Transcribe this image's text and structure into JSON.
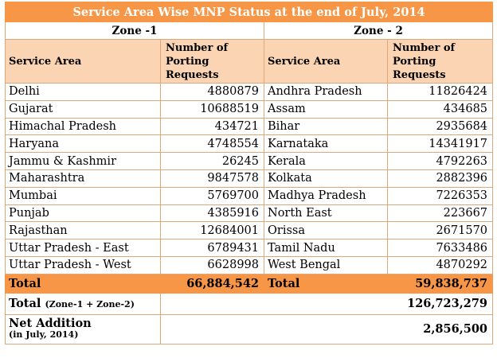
{
  "title": "Service Area Wise MNP Status at the end of July, 2014",
  "zones": [
    {
      "name": "Zone -1",
      "col_area": "Service Area",
      "col_requests": "Number of Porting Requests",
      "rows": [
        {
          "area": "Delhi",
          "requests": "4880879"
        },
        {
          "area": "Gujarat",
          "requests": "10688519"
        },
        {
          "area": "Himachal Pradesh",
          "requests": "434721"
        },
        {
          "area": "Haryana",
          "requests": "4748554"
        },
        {
          "area": "Jammu & Kashmir",
          "requests": "26245"
        },
        {
          "area": "Maharashtra",
          "requests": "9847578"
        },
        {
          "area": "Mumbai",
          "requests": "5769700"
        },
        {
          "area": "Punjab",
          "requests": "4385916"
        },
        {
          "area": "Rajasthan",
          "requests": "12684001"
        },
        {
          "area": "Uttar Pradesh - East",
          "requests": "6789431"
        },
        {
          "area": "Uttar Pradesh - West",
          "requests": "6628998"
        }
      ],
      "total_label": "Total",
      "total_value": "66,884,542"
    },
    {
      "name": "Zone - 2",
      "col_area": "Service Area",
      "col_requests": "Number of Porting Requests",
      "rows": [
        {
          "area": "Andhra Pradesh",
          "requests": "11826424"
        },
        {
          "area": "Assam",
          "requests": "434685"
        },
        {
          "area": "Bihar",
          "requests": "2935684"
        },
        {
          "area": "Karnataka",
          "requests": "14341917"
        },
        {
          "area": "Kerala",
          "requests": "4792263"
        },
        {
          "area": "Kolkata",
          "requests": "2882396"
        },
        {
          "area": "Madhya Pradesh",
          "requests": "7226353"
        },
        {
          "area": "North East",
          "requests": "223667"
        },
        {
          "area": "Orissa",
          "requests": "2671570"
        },
        {
          "area": "Tamil Nadu",
          "requests": "7633486"
        },
        {
          "area": "West Bengal",
          "requests": "4870292"
        }
      ],
      "total_label": "Total",
      "total_value": "59,838,737"
    }
  ],
  "grand_total": {
    "label": "Total",
    "sublabel": "(Zone-1 + Zone-2)",
    "value": "126,723,279"
  },
  "net_addition": {
    "label": "Net Addition",
    "sublabel": "(in July, 2014)",
    "value": "2,856,500"
  },
  "colors": {
    "header_orange": "#f79646",
    "subheader_peach": "#fbd4b4",
    "border": "#e0a878"
  }
}
